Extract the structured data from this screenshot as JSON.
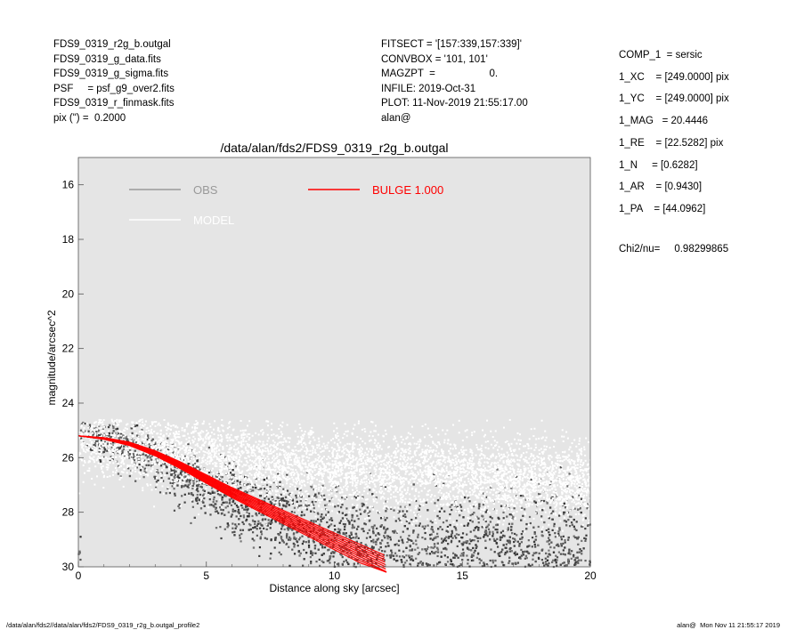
{
  "header": {
    "left": [
      "FDS9_0319_r2g_b.outgal",
      "FDS9_0319_g_data.fits",
      "FDS9_0319_g_sigma.fits",
      "PSF     = psf_g9_over2.fits",
      "FDS9_0319_r_finmask.fits",
      "pix (\") =  0.2000"
    ],
    "middle": [
      "FITSECT = '[157:339,157:339]'",
      "CONVBOX = '101, 101'",
      "MAGZPT  =                   0.",
      "INFILE: 2019-Oct-31",
      "PLOT: 11-Nov-2019 21:55:17.00",
      "alan@"
    ],
    "right": [
      "COMP_1  = sersic",
      "1_XC    = [249.0000] pix",
      "1_YC    = [249.0000] pix",
      "1_MAG   = 20.4446",
      "1_RE    = [22.5282] pix",
      "1_N     = [0.6282]",
      "1_AR    = [0.9430]",
      "1_PA    = [44.0962]"
    ],
    "chi2_label": "Chi2/nu=",
    "chi2_value": "0.98299865"
  },
  "footer": {
    "left": "/data/alan/fds2//data/alan/fds2/FDS9_0319_r2g_b.outgal_profile2",
    "right": "alan@  Mon Nov 11 21:55:17 2019"
  },
  "chart_data": {
    "type": "scatter",
    "title": "/data/alan/fds2/FDS9_0319_r2g_b.outgal",
    "xlabel": "Distance along sky [arcsec]",
    "ylabel": "magnitude/arcsec^2",
    "xlim": [
      0,
      20
    ],
    "ylim": [
      30,
      15
    ],
    "y_inverted": true,
    "x_ticks": [
      "0",
      "5",
      "10",
      "15",
      "20"
    ],
    "y_ticks": [
      "16",
      "18",
      "20",
      "22",
      "24",
      "26",
      "28",
      "30"
    ],
    "background_color": "#e5e5e5",
    "legend": [
      {
        "label": "OBS",
        "color": "#999999"
      },
      {
        "label": "BULGE  1.000",
        "color": "#ff0000"
      },
      {
        "label": "MODEL",
        "color": "#ffffff"
      }
    ],
    "series": [
      {
        "name": "OBS",
        "color": "#404040",
        "description_points": [
          [
            0.1,
            25.1
          ],
          [
            0.2,
            25.0
          ],
          [
            0.3,
            25.2
          ],
          [
            0.4,
            25.05
          ],
          [
            0.5,
            25.15
          ],
          [
            1,
            25.4
          ],
          [
            2,
            25.6
          ],
          [
            3,
            26.1
          ],
          [
            4,
            26.6
          ],
          [
            5,
            27.1
          ],
          [
            6,
            27.5
          ],
          [
            7,
            27.9
          ],
          [
            8,
            28.2
          ],
          [
            9,
            28.6
          ],
          [
            10,
            28.9
          ],
          [
            12,
            29.3
          ],
          [
            14,
            29.5
          ],
          [
            16,
            29.6
          ],
          [
            18,
            29.6
          ],
          [
            20,
            29.7
          ]
        ]
      },
      {
        "name": "MODEL",
        "color": "#ffffff",
        "description_points": [
          [
            0,
            25.2
          ],
          [
            2,
            25.3
          ],
          [
            4,
            25.6
          ],
          [
            6,
            25.8
          ],
          [
            8,
            26.0
          ],
          [
            10,
            26.2
          ],
          [
            12,
            26.3
          ],
          [
            14,
            26.4
          ],
          [
            16,
            26.5
          ],
          [
            18,
            26.6
          ],
          [
            20,
            26.7
          ]
        ]
      },
      {
        "name": "BULGE  1.000",
        "color": "#ff0000",
        "x": [
          0.0,
          1.0,
          2.0,
          3.0,
          4.0,
          5.0,
          6.0,
          7.0,
          8.0,
          9.0,
          10.0,
          11.0,
          12.0
        ],
        "y": [
          25.2,
          25.3,
          25.5,
          25.85,
          26.3,
          26.8,
          27.3,
          27.75,
          28.2,
          28.65,
          29.1,
          29.55,
          30.0
        ]
      }
    ]
  }
}
